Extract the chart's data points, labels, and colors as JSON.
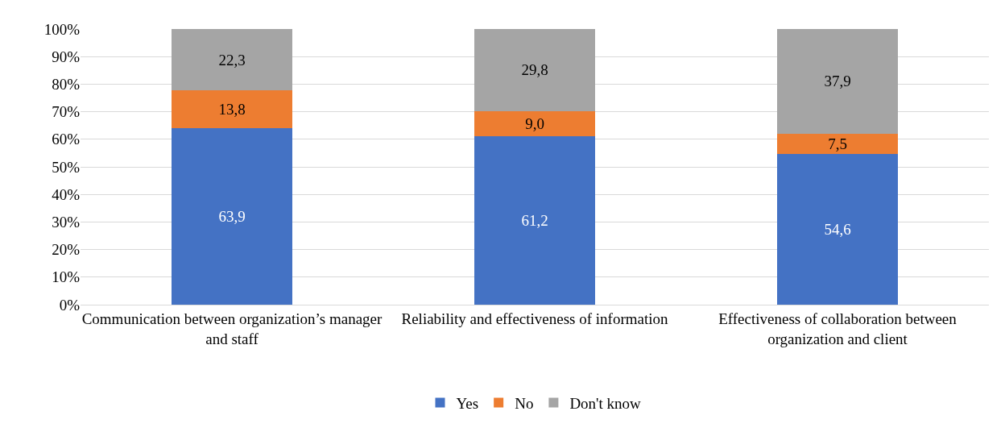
{
  "chart_data": {
    "type": "bar",
    "stacked": true,
    "categories": [
      "Communication between organization’s manager and staff",
      "Reliability and effectiveness of information",
      "Effectiveness of collaboration between organization and client"
    ],
    "series": [
      {
        "name": "Yes",
        "color": "#4472c4",
        "values": [
          63.9,
          61.2,
          54.6
        ],
        "value_labels": [
          "63,9",
          "61,2",
          "54,6"
        ]
      },
      {
        "name": "No",
        "color": "#ed7d31",
        "values": [
          13.8,
          9.0,
          7.5
        ],
        "value_labels": [
          "13,8",
          "9,0",
          "7,5"
        ]
      },
      {
        "name": "Don't know",
        "color": "#a5a5a5",
        "values": [
          22.3,
          29.8,
          37.9
        ],
        "value_labels": [
          "22,3",
          "29,8",
          "37,9"
        ]
      }
    ],
    "ylim": [
      0,
      100
    ],
    "yticks": [
      {
        "value": 0,
        "label": "0%"
      },
      {
        "value": 10,
        "label": "10%"
      },
      {
        "value": 20,
        "label": "20%"
      },
      {
        "value": 30,
        "label": "30%"
      },
      {
        "value": 40,
        "label": "40%"
      },
      {
        "value": 50,
        "label": "50%"
      },
      {
        "value": 60,
        "label": "60%"
      },
      {
        "value": 70,
        "label": "70%"
      },
      {
        "value": 80,
        "label": "80%"
      },
      {
        "value": 90,
        "label": "90%"
      },
      {
        "value": 100,
        "label": "100%"
      }
    ],
    "grid": "y",
    "legend": "bottom"
  }
}
